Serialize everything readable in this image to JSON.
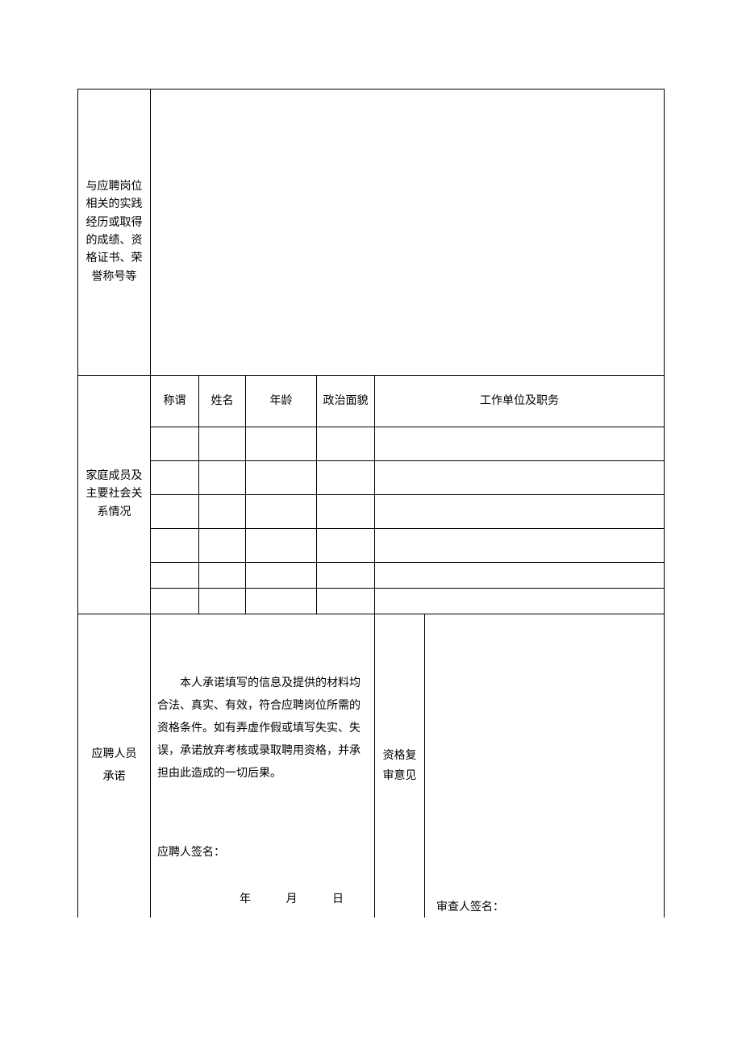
{
  "section1": {
    "label": "与应聘岗位相关的实践经历或取得的成绩、资格证书、荣誉称号等"
  },
  "section2": {
    "label": "家庭成员及主要社会关系情况",
    "headers": {
      "chengwei": "称谓",
      "xingming": "姓名",
      "nianling": "年龄",
      "zhengzhi": "政治面貌",
      "gongzuo": "工作单位及职务"
    }
  },
  "section3": {
    "label_line1": "应聘人员",
    "label_line2": "承诺",
    "commitment_text": "本人承诺填写的信息及提供的材料均合法、真实、有效，符合应聘岗位所需的资格条件。如有弄虚作假或填写失实、失误，承诺放弃考核或录取聘用资格，并承担由此造成的一切后果。",
    "applicant_signature_label": "应聘人签名：",
    "date_year": "年",
    "date_month": "月",
    "date_day": "日",
    "fushen_label": "资格复审意见",
    "reviewer_signature_label": "审查人签名："
  }
}
